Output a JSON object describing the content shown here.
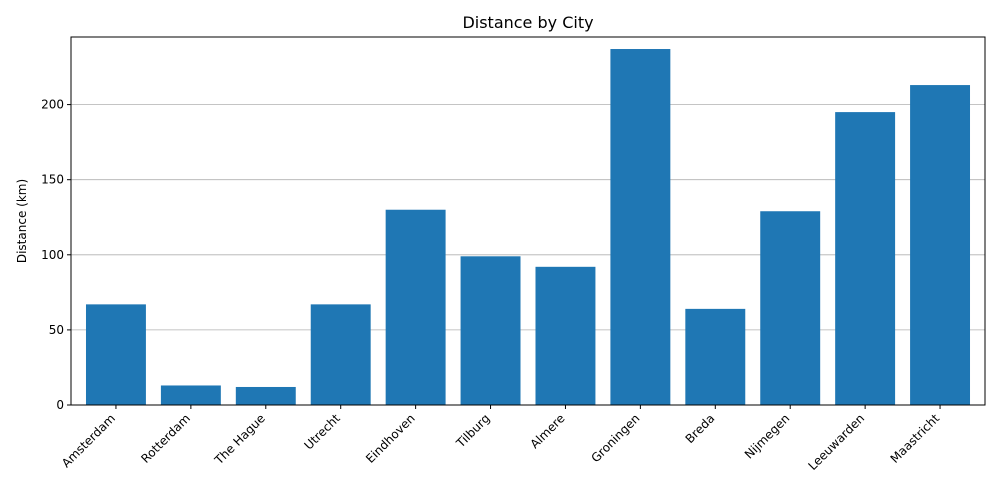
{
  "chart_data": {
    "type": "bar",
    "title": "Distance by City",
    "xlabel": "",
    "ylabel": "Distance (km)",
    "categories": [
      "Amsterdam",
      "Rotterdam",
      "The Hague",
      "Utrecht",
      "Eindhoven",
      "Tilburg",
      "Almere",
      "Groningen",
      "Breda",
      "Nijmegen",
      "Leeuwarden",
      "Maastricht"
    ],
    "values": [
      67,
      13,
      12,
      67,
      130,
      99,
      92,
      237,
      64,
      129,
      195,
      213
    ],
    "ylim": [
      0,
      245
    ],
    "yticks": [
      0,
      50,
      100,
      150,
      200
    ],
    "grid": "y",
    "bar_color": "#1f77b4"
  }
}
